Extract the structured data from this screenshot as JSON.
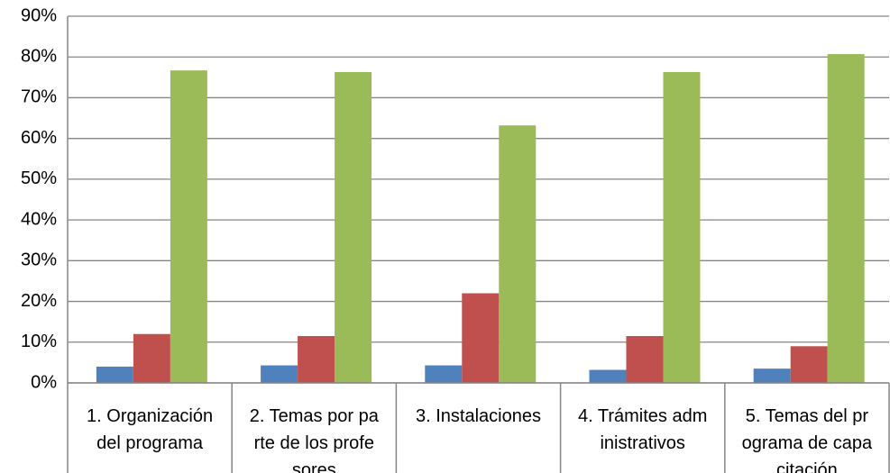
{
  "chart_data": {
    "type": "bar",
    "categories": [
      [
        "1. Organización",
        "del programa"
      ],
      [
        "2. Temas por pa",
        "rte de los profe",
        "sores"
      ],
      [
        "3. Instalaciones"
      ],
      [
        "4. Trámites adm",
        "inistrativos"
      ],
      [
        "5. Temas del pr",
        "ograma de capa",
        "citación"
      ]
    ],
    "series": [
      {
        "color": "#4f81bd",
        "values": [
          4,
          4.3,
          4.3,
          3.2,
          3.5
        ]
      },
      {
        "color": "#c0504d",
        "values": [
          12,
          11.5,
          22,
          11.5,
          9
        ]
      },
      {
        "color": "#9bbb59",
        "values": [
          76.7,
          76.3,
          63.2,
          76.3,
          80.7
        ]
      }
    ],
    "ylim": [
      0,
      90
    ],
    "yticks": [
      {
        "value": 0,
        "label": "0%"
      },
      {
        "value": 10,
        "label": "10%"
      },
      {
        "value": 20,
        "label": "20%"
      },
      {
        "value": 30,
        "label": "30%"
      },
      {
        "value": 40,
        "label": "40%"
      },
      {
        "value": 50,
        "label": "50%"
      },
      {
        "value": 60,
        "label": "60%"
      },
      {
        "value": 70,
        "label": "70%"
      },
      {
        "value": 80,
        "label": "80%"
      },
      {
        "value": 90,
        "label": "90%"
      }
    ],
    "grid": true
  }
}
